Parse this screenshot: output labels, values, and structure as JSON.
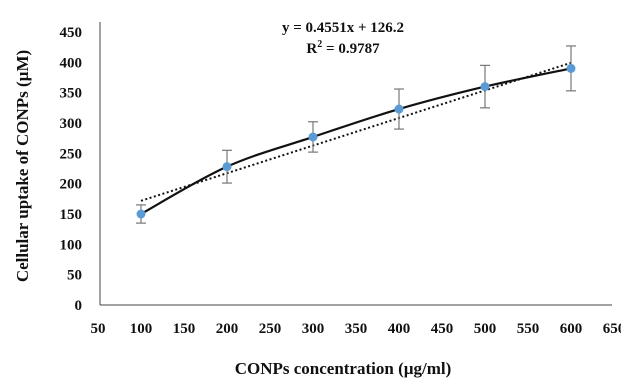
{
  "chart_data": {
    "type": "scatter",
    "title": "",
    "xlabel": "CONPs concentration (µg/ml)",
    "ylabel": "Cellular uptake of CONPs (µM)",
    "x_ticks": [
      50,
      100,
      150,
      200,
      250,
      300,
      350,
      400,
      450,
      500,
      550,
      600,
      650
    ],
    "y_ticks": [
      0,
      50,
      100,
      150,
      200,
      250,
      300,
      350,
      400,
      450
    ],
    "xlim": [
      50,
      650
    ],
    "ylim": [
      0,
      450
    ],
    "grid": false,
    "series": [
      {
        "x": [
          100,
          200,
          300,
          400,
          500,
          600
        ],
        "y": [
          150,
          228,
          277,
          323,
          360,
          390
        ],
        "error": [
          15,
          27,
          25,
          33,
          35,
          37
        ],
        "marker_color": "#5b9bd5",
        "line_color": "#111111",
        "line_style": "solid smooth"
      }
    ],
    "trendline": {
      "type": "linear",
      "slope": 0.4551,
      "intercept": 126.2,
      "style": "dotted",
      "equation": "y = 0.4551x + 126.2",
      "r_squared_label": "R",
      "r_squared_sup": "2",
      "r_squared_value": " = 0.9787"
    }
  }
}
